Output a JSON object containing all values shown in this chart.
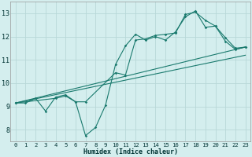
{
  "title": "",
  "xlabel": "Humidex (Indice chaleur)",
  "bg_color": "#d4eeee",
  "grid_color": "#b8d8d8",
  "line_color": "#1a7a6e",
  "xlim": [
    -0.5,
    23.5
  ],
  "ylim": [
    7.5,
    13.5
  ],
  "xticks": [
    0,
    1,
    2,
    3,
    4,
    5,
    6,
    7,
    8,
    9,
    10,
    11,
    12,
    13,
    14,
    15,
    16,
    17,
    18,
    19,
    20,
    21,
    22,
    23
  ],
  "yticks": [
    8,
    9,
    10,
    11,
    12,
    13
  ],
  "series1": [
    [
      0,
      9.15
    ],
    [
      1,
      9.15
    ],
    [
      2,
      9.35
    ],
    [
      3,
      8.8
    ],
    [
      4,
      9.4
    ],
    [
      5,
      9.5
    ],
    [
      6,
      9.2
    ],
    [
      7,
      7.75
    ],
    [
      8,
      8.1
    ],
    [
      9,
      9.05
    ],
    [
      10,
      10.8
    ],
    [
      11,
      11.6
    ],
    [
      12,
      12.1
    ],
    [
      13,
      11.85
    ],
    [
      14,
      12.0
    ],
    [
      15,
      11.85
    ],
    [
      16,
      12.2
    ],
    [
      17,
      12.85
    ],
    [
      18,
      13.1
    ],
    [
      19,
      12.4
    ],
    [
      20,
      12.45
    ],
    [
      21,
      11.8
    ],
    [
      22,
      11.45
    ],
    [
      23,
      11.55
    ]
  ],
  "series2": [
    [
      0,
      9.15
    ],
    [
      4,
      9.35
    ],
    [
      5,
      9.45
    ],
    [
      6,
      9.2
    ],
    [
      7,
      9.2
    ],
    [
      10,
      10.45
    ],
    [
      11,
      10.35
    ],
    [
      12,
      11.85
    ],
    [
      13,
      11.9
    ],
    [
      14,
      12.05
    ],
    [
      15,
      12.1
    ],
    [
      16,
      12.15
    ],
    [
      17,
      12.95
    ],
    [
      18,
      13.05
    ],
    [
      19,
      12.7
    ],
    [
      20,
      12.45
    ],
    [
      21,
      11.95
    ],
    [
      22,
      11.5
    ],
    [
      23,
      11.55
    ]
  ],
  "line1": [
    [
      0,
      9.15
    ],
    [
      23,
      11.55
    ]
  ],
  "line2": [
    [
      0,
      9.15
    ],
    [
      23,
      11.2
    ]
  ]
}
